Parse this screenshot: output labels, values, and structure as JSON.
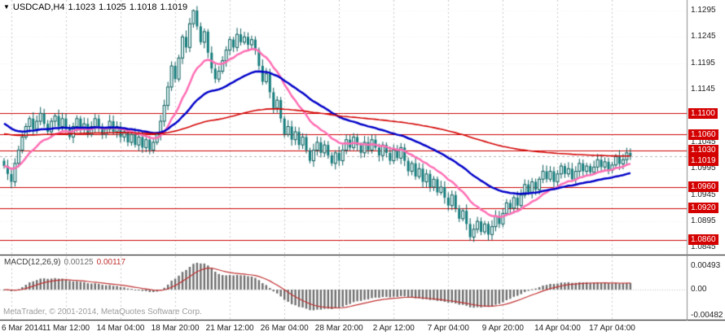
{
  "header": {
    "symbol_period": "USDCAD,H4",
    "open": "1.1023",
    "high": "1.1025",
    "low": "1.1018",
    "close": "1.1019"
  },
  "footer": {
    "copyright": "MetaTrader, © 2001-2014, MetaQuotes Software Corp."
  },
  "chart_data": {
    "type": "candlestick",
    "symbol": "USDCAD",
    "timeframe": "H4",
    "x_axis": {
      "labels": [
        "6 Mar 2014",
        "11 Mar 12:00",
        "14 Mar 04:00",
        "18 Mar 20:00",
        "21 Mar 12:00",
        "26 Mar 04:00",
        "28 Mar 20:00",
        "2 Apr 12:00",
        "7 Apr 04:00",
        "9 Apr 20:00",
        "14 Apr 04:00",
        "17 Apr 04:00"
      ],
      "label_bars": [
        2,
        17,
        32,
        47,
        62,
        77,
        92,
        107,
        122,
        137,
        152,
        167
      ]
    },
    "y_axis": {
      "ticks": [
        "1.1295",
        "1.1245",
        "1.1195",
        "1.1145",
        "1.1095",
        "1.1045",
        "1.0995",
        "1.0945",
        "1.0895",
        "1.0845"
      ],
      "min": 1.0838,
      "max": 1.1312
    },
    "levels": [
      {
        "value": 1.11,
        "label": "1.1100"
      },
      {
        "value": 1.106,
        "label": "1.1060"
      },
      {
        "value": 1.103,
        "label": "1.1030"
      },
      {
        "value": 1.096,
        "label": "1.0960"
      },
      {
        "value": 1.092,
        "label": "1.0920"
      },
      {
        "value": 1.086,
        "label": "1.0860"
      }
    ],
    "current_price": {
      "value": 1.1019,
      "label": "1.1019"
    },
    "candles": {
      "open_rule": "previous_close",
      "closes": [
        1.1,
        1.0985,
        1.097,
        1.1005,
        1.103,
        1.1055,
        1.1075,
        1.109,
        1.107,
        1.1085,
        1.11,
        1.108,
        1.1065,
        1.1085,
        1.1095,
        1.1075,
        1.109,
        1.107,
        1.1055,
        1.1075,
        1.109,
        1.107,
        1.108,
        1.106,
        1.1075,
        1.109,
        1.1075,
        1.106,
        1.107,
        1.1085,
        1.1065,
        1.1075,
        1.1055,
        1.1065,
        1.1045,
        1.106,
        1.104,
        1.1055,
        1.1035,
        1.105,
        1.103,
        1.1045,
        1.106,
        1.1085,
        1.1115,
        1.115,
        1.119,
        1.1165,
        1.1205,
        1.1245,
        1.1225,
        1.127,
        1.1295,
        1.1265,
        1.1235,
        1.1255,
        1.1215,
        1.1185,
        1.1165,
        1.118,
        1.12,
        1.122,
        1.124,
        1.1225,
        1.125,
        1.1235,
        1.1245,
        1.123,
        1.124,
        1.122,
        1.119,
        1.116,
        1.1175,
        1.114,
        1.111,
        1.1125,
        1.109,
        1.106,
        1.1075,
        1.105,
        1.1065,
        1.104,
        1.1055,
        1.103,
        1.101,
        1.103,
        1.1045,
        1.1025,
        1.104,
        1.102,
        1.1005,
        1.1025,
        1.101,
        1.103,
        1.105,
        1.1035,
        1.1055,
        1.104,
        1.1025,
        1.1045,
        1.103,
        1.105,
        1.1035,
        1.102,
        1.104,
        1.1025,
        1.101,
        1.103,
        1.1015,
        1.1035,
        1.101,
        1.099,
        1.1005,
        1.098,
        1.0995,
        1.097,
        1.0985,
        1.096,
        1.0975,
        1.095,
        1.096,
        1.094,
        1.0925,
        1.0945,
        1.092,
        1.09,
        1.0915,
        1.089,
        1.0865,
        1.088,
        1.0895,
        1.0875,
        1.089,
        1.087,
        1.0885,
        1.0905,
        1.089,
        1.091,
        1.093,
        1.092,
        1.094,
        1.0925,
        1.0945,
        1.0965,
        1.095,
        1.097,
        1.0955,
        1.0975,
        1.099,
        1.0975,
        1.099,
        1.097,
        1.0985,
        1.1,
        1.0985,
        1.0995,
        1.0975,
        1.099,
        1.1005,
        1.099,
        1.1,
        1.0988,
        1.0998,
        1.1012,
        1.0998,
        1.1008,
        1.0992,
        1.1002,
        1.1018,
        1.1004,
        1.1012,
        1.1025,
        1.1019
      ],
      "wick_overrides": {
        "2": {
          "low": 1.0958
        },
        "10": {
          "high": 1.1112
        },
        "52": {
          "high": 1.1297
        },
        "128": {
          "low": 1.0858
        }
      }
    },
    "moving_averages": [
      {
        "name": "fast-ma",
        "type": "ema",
        "period": 15,
        "color": "#ff6eb4",
        "width": 2.5
      },
      {
        "name": "medium-ma",
        "type": "ema",
        "period": 40,
        "seed": 1.1085,
        "color": "#0000c8",
        "width": 2.5
      },
      {
        "name": "slow-ma",
        "type": "ema",
        "period": 160,
        "seed": 1.1062,
        "color": "#d40000",
        "width": 1.6
      }
    ],
    "macd": {
      "label": "MACD(12,26,9)",
      "value_main": "0.00125",
      "value_signal": "0.00117",
      "fast": 12,
      "slow": 26,
      "signal_period": 9,
      "y_ticks": [
        "0.00493",
        "0.00",
        "-0.00482"
      ]
    },
    "colors": {
      "bull": "#eafafa",
      "bear": "#167d7d",
      "candle_outline": "#0d5c5c",
      "level_line": "#cc0000",
      "badge_bg": "#d40000",
      "badge_text": "#ffffff",
      "grid_v": "#c9c9c9",
      "grid_h": "#ededed",
      "separator": "#000000",
      "axis_line": "#8a8a8a",
      "histogram": "#6e6e6e",
      "signal_line": "#c03030",
      "bid_line": "#b5b5b5"
    }
  }
}
